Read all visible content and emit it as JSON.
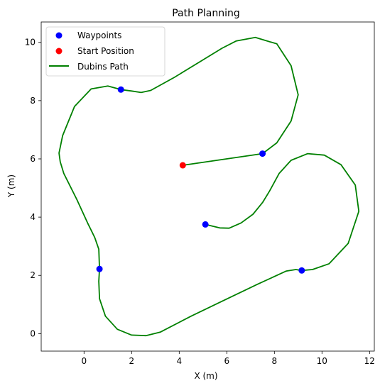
{
  "chart_data": {
    "type": "scatter",
    "title": "Path Planning",
    "xlabel": "X (m)",
    "ylabel": "Y (m)",
    "xlim": [
      -1.8,
      12.2
    ],
    "ylim": [
      -0.6,
      10.7
    ],
    "xticks": [
      0,
      2,
      4,
      6,
      8,
      10,
      12
    ],
    "yticks": [
      0,
      2,
      4,
      6,
      8,
      10
    ],
    "grid": false,
    "legend_position": "top-left",
    "colors": {
      "waypoints": "#0000ff",
      "start": "#ff0000",
      "path": "#008000"
    },
    "series": [
      {
        "name": "Waypoints",
        "kind": "scatter",
        "color": "#0000ff",
        "points": [
          [
            1.55,
            8.38
          ],
          [
            7.5,
            6.18
          ],
          [
            0.65,
            2.22
          ],
          [
            9.15,
            2.17
          ],
          [
            5.1,
            3.75
          ]
        ]
      },
      {
        "name": "Start Position",
        "kind": "scatter",
        "color": "#ff0000",
        "points": [
          [
            4.15,
            5.78
          ]
        ]
      },
      {
        "name": "Dubins Path",
        "kind": "line",
        "color": "#008000",
        "points": [
          [
            4.15,
            5.78
          ],
          [
            7.5,
            6.18
          ],
          [
            8.1,
            6.55
          ],
          [
            8.7,
            7.3
          ],
          [
            9.0,
            8.2
          ],
          [
            8.7,
            9.2
          ],
          [
            8.1,
            9.95
          ],
          [
            7.2,
            10.17
          ],
          [
            6.4,
            10.05
          ],
          [
            5.8,
            9.8
          ],
          [
            4.8,
            9.3
          ],
          [
            3.8,
            8.8
          ],
          [
            2.8,
            8.35
          ],
          [
            2.4,
            8.28
          ],
          [
            2.0,
            8.33
          ],
          [
            1.55,
            8.38
          ],
          [
            1.0,
            8.5
          ],
          [
            0.3,
            8.4
          ],
          [
            -0.4,
            7.8
          ],
          [
            -0.9,
            6.8
          ],
          [
            -1.05,
            6.2
          ],
          [
            -1.0,
            5.9
          ],
          [
            -0.85,
            5.5
          ],
          [
            -0.3,
            4.6
          ],
          [
            0.15,
            3.8
          ],
          [
            0.45,
            3.3
          ],
          [
            0.62,
            2.9
          ],
          [
            0.65,
            2.22
          ],
          [
            0.62,
            1.8
          ],
          [
            0.65,
            1.2
          ],
          [
            0.9,
            0.6
          ],
          [
            1.4,
            0.15
          ],
          [
            2.0,
            -0.05
          ],
          [
            2.6,
            -0.07
          ],
          [
            3.2,
            0.05
          ],
          [
            4.5,
            0.6
          ],
          [
            5.9,
            1.15
          ],
          [
            7.3,
            1.7
          ],
          [
            8.5,
            2.15
          ],
          [
            8.9,
            2.2
          ],
          [
            9.15,
            2.17
          ],
          [
            9.6,
            2.2
          ],
          [
            10.3,
            2.4
          ],
          [
            11.1,
            3.1
          ],
          [
            11.55,
            4.2
          ],
          [
            11.4,
            5.1
          ],
          [
            10.8,
            5.8
          ],
          [
            10.1,
            6.13
          ],
          [
            9.4,
            6.18
          ],
          [
            8.7,
            5.95
          ],
          [
            8.2,
            5.5
          ],
          [
            7.8,
            4.9
          ],
          [
            7.5,
            4.5
          ],
          [
            7.1,
            4.1
          ],
          [
            6.6,
            3.8
          ],
          [
            6.1,
            3.62
          ],
          [
            5.7,
            3.63
          ],
          [
            5.1,
            3.75
          ]
        ]
      }
    ]
  }
}
